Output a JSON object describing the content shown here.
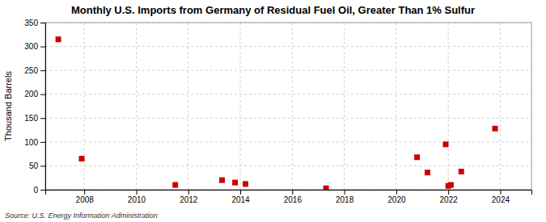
{
  "chart_data": {
    "type": "scatter",
    "title": "Monthly U.S. Imports from Germany of Residual Fuel Oil, Greater Than 1% Sulfur",
    "ylabel": "Thousand Barrels",
    "annotations": [
      "Source: U.S. Energy Information Administration"
    ],
    "x": [
      2007.0,
      2007.9,
      2011.5,
      2013.3,
      2013.8,
      2014.2,
      2017.3,
      2020.8,
      2021.2,
      2021.9,
      2022.0,
      2022.1,
      2022.5,
      2023.8
    ],
    "values": [
      315,
      65,
      10,
      20,
      15,
      12,
      3,
      68,
      36,
      95,
      8,
      10,
      38,
      128
    ],
    "color": "#cc0000",
    "marker": "square",
    "xlim": [
      2006.5,
      2025.2
    ],
    "xticks": [
      2008,
      2010,
      2012,
      2014,
      2016,
      2018,
      2020,
      2022,
      2024
    ],
    "ylim": [
      0,
      350
    ],
    "yticks": [
      0,
      50,
      100,
      150,
      200,
      250,
      300,
      350
    ],
    "grid": true
  }
}
